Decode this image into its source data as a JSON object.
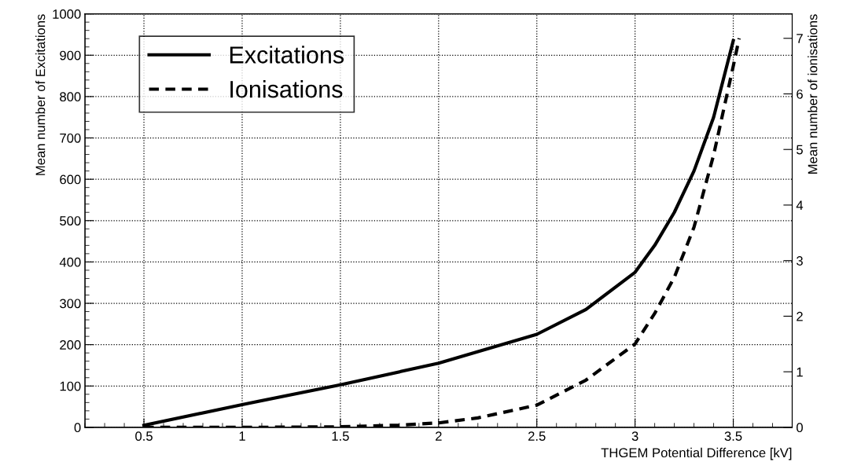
{
  "chart_data": {
    "type": "line",
    "xlabel": "THGEM Potential Difference [kV]",
    "ylabel": "Mean number of Excitations",
    "y2label": "Mean number of ionisations",
    "xlim": [
      0.2,
      3.8
    ],
    "xticks": [
      0.5,
      1,
      1.5,
      2,
      2.5,
      3,
      3.5
    ],
    "ylim": [
      0,
      1000
    ],
    "yticks": [
      0,
      100,
      200,
      300,
      400,
      500,
      600,
      700,
      800,
      900,
      1000
    ],
    "y2lim": [
      0,
      7.44
    ],
    "y2ticks": [
      0,
      1,
      2,
      3,
      4,
      5,
      6,
      7
    ],
    "grid": true,
    "legend": "top left",
    "series": [
      {
        "name": "Excitations",
        "color": "#000000",
        "line_style": "solid",
        "x": [
          0.5,
          1,
          1.5,
          2,
          2.5,
          2.75,
          3,
          3.1,
          3.2,
          3.3,
          3.4,
          3.5
        ],
        "values": [
          5,
          55,
          103,
          155,
          225,
          285,
          375,
          440,
          520,
          620,
          750,
          935
        ]
      },
      {
        "name": "Ionisations",
        "color": "#000000",
        "line_style": "dashed",
        "axis": "y2",
        "x": [
          0.5,
          1,
          1.5,
          1.8,
          2,
          2.2,
          2.5,
          2.75,
          3,
          3.1,
          3.2,
          3.3,
          3.4,
          3.5,
          3.53
        ],
        "values": [
          0,
          0,
          0.01,
          0.04,
          0.08,
          0.17,
          0.4,
          0.85,
          1.5,
          2.05,
          2.7,
          3.6,
          4.9,
          6.5,
          7.0
        ]
      }
    ]
  }
}
